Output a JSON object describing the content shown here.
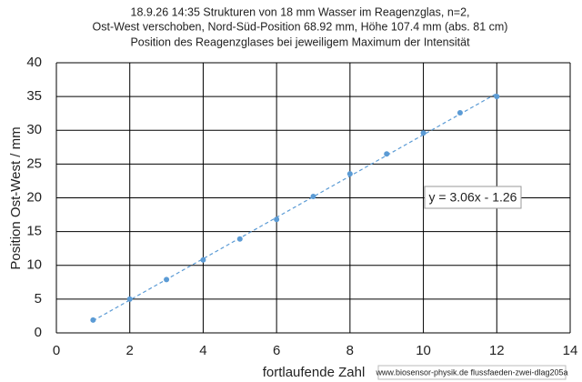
{
  "chart_data": {
    "type": "scatter",
    "title": [
      "18.9.26  14:35  Strukturen von 18 mm Wasser im Reagenzglas, n=2,",
      "Ost-West  verschoben, Nord-Süd-Position 68.92  mm, Höhe 107.4 mm (abs. 81 cm)",
      "Position des Reagenzglases bei jeweiligem Maximum der Intensität"
    ],
    "x_label": "fortlaufende Zahl",
    "y_label": "Position  Ost-West / mm",
    "x": [
      1,
      2,
      3,
      4,
      5,
      6,
      7,
      8,
      9,
      10,
      11,
      12
    ],
    "values": [
      1.9,
      5.0,
      7.9,
      10.8,
      13.9,
      16.8,
      20.2,
      23.55,
      26.5,
      29.6,
      32.6,
      35.0
    ],
    "color": "#5b9bd5",
    "trendline": {
      "label": "y = 3.06x - 1.26",
      "slope": 3.06,
      "intercept": -1.26
    },
    "xlim": [
      0,
      14
    ],
    "xticks": [
      0,
      2,
      4,
      6,
      8,
      10,
      12,
      14
    ],
    "ylim": [
      0,
      40
    ],
    "yticks": [
      0,
      5,
      10,
      15,
      20,
      25,
      30,
      35,
      40
    ],
    "grid": true,
    "source": "www.biosensor-physik.de  flussfaeden-zwei-dlag205a"
  }
}
